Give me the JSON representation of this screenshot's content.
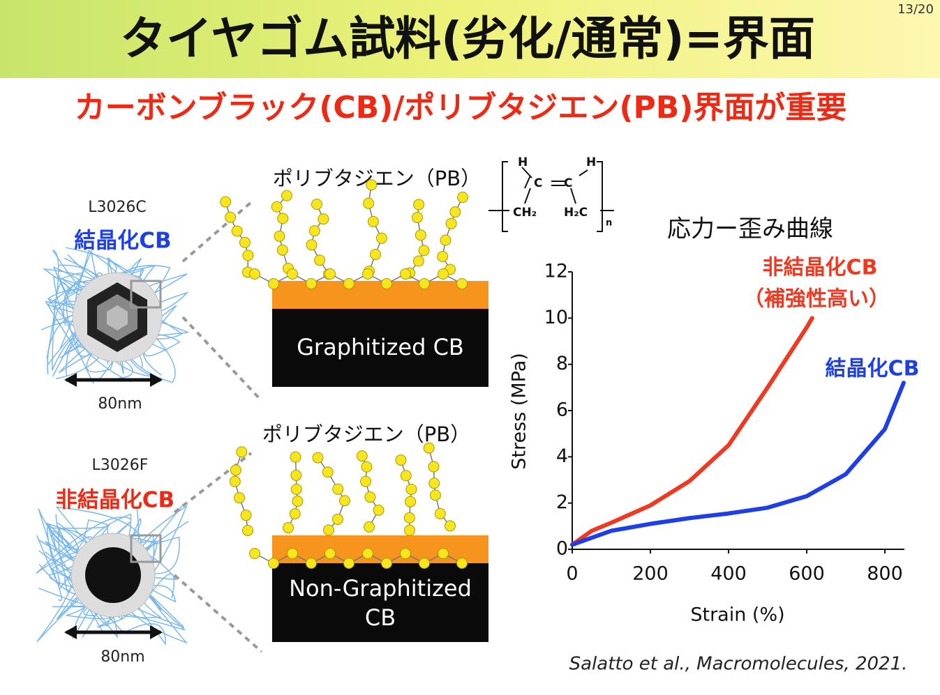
{
  "page_number": "13/20",
  "title": "タイヤゴム試料(劣化/通常)=界面",
  "subtitle": "カーボンブラック(CB)/ポリブタジエン(PB)界面が重要",
  "particles": [
    {
      "sample": "L3026C",
      "label": "結晶化CB",
      "size": "80nm"
    },
    {
      "sample": "L3026F",
      "label": "非結晶化CB",
      "size": "80nm"
    }
  ],
  "interfaces": [
    {
      "polymer": "ポリブタジエン（PB）",
      "substrate": [
        "Graphitized CB"
      ]
    },
    {
      "polymer": "ポリブタジエン（PB）",
      "substrate": [
        "Non-Graphitized",
        "CB"
      ]
    }
  ],
  "structure": {
    "atoms": [
      "H",
      "H",
      "C",
      "C",
      "CH₂",
      "H₂C",
      "n"
    ]
  },
  "chart_data": {
    "type": "line",
    "title": "応力ー歪み曲線",
    "x_label": "Strain (%)",
    "y_label": "Stress (MPa)",
    "xlim": [
      0,
      850
    ],
    "ylim": [
      0,
      12
    ],
    "xticks": [
      0,
      200,
      400,
      600,
      800
    ],
    "yticks": [
      0,
      2,
      4,
      6,
      8,
      10,
      12
    ],
    "series": [
      {
        "name": "非結晶化CB",
        "note": "（補強性高い）",
        "color": "#ee3a22",
        "x": [
          0,
          50,
          100,
          200,
          300,
          400,
          500,
          600,
          614
        ],
        "values": [
          0.2,
          0.8,
          1.15,
          1.9,
          2.95,
          4.5,
          7.0,
          9.6,
          10.0
        ]
      },
      {
        "name": "結晶化CB",
        "color": "#1f3fe6",
        "x": [
          0,
          100,
          200,
          300,
          400,
          500,
          600,
          700,
          800,
          848
        ],
        "values": [
          0.2,
          0.8,
          1.1,
          1.35,
          1.55,
          1.8,
          2.3,
          3.25,
          5.2,
          7.2
        ]
      }
    ],
    "source": "Salatto et al., Macromolecules, 2021."
  }
}
